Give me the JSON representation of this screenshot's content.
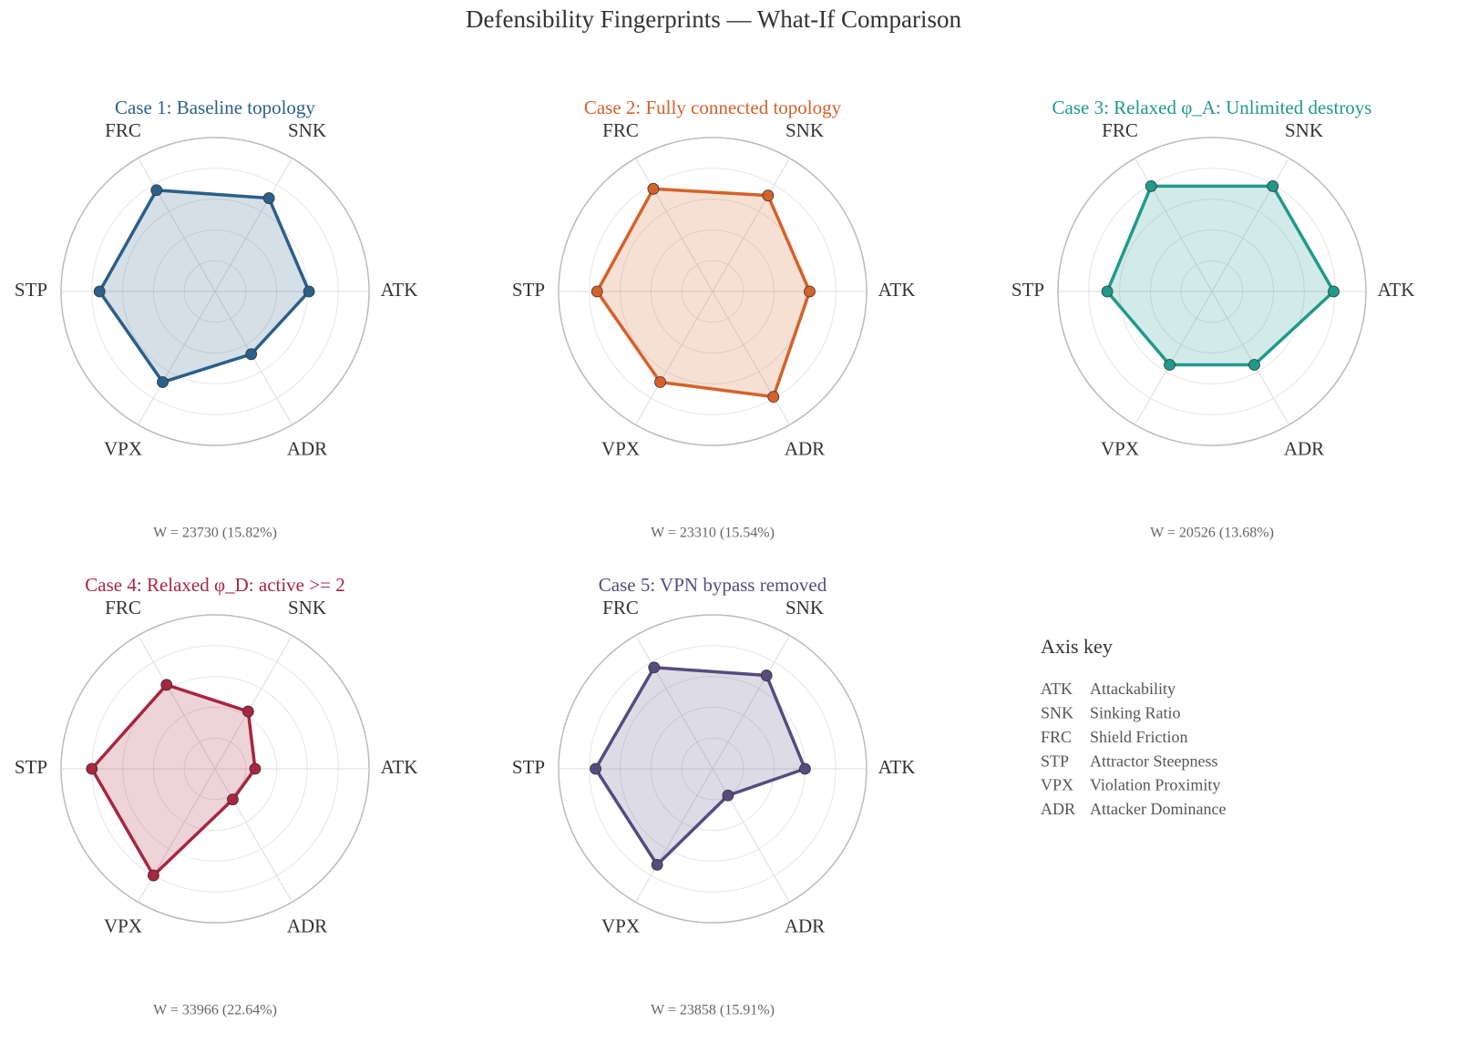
{
  "title": "Defensibility Fingerprints — What-If Comparison",
  "chart_data": [
    {
      "type": "radar",
      "title": "Case 1: Baseline topology",
      "color": "#2c5f8a",
      "categories": [
        "ATK",
        "SNK",
        "FRC",
        "STP",
        "VPX",
        "ADR"
      ],
      "values": [
        0.61,
        0.7,
        0.76,
        0.75,
        0.68,
        0.47
      ],
      "ylim": [
        0,
        1
      ],
      "yticks": [
        0.2,
        0.4,
        0.6,
        0.8
      ],
      "annotation": "W = 23730 (15.82%)"
    },
    {
      "type": "radar",
      "title": "Case 2: Fully connected topology",
      "color": "#d4622a",
      "categories": [
        "ATK",
        "SNK",
        "FRC",
        "STP",
        "VPX",
        "ADR"
      ],
      "values": [
        0.63,
        0.72,
        0.77,
        0.75,
        0.68,
        0.79
      ],
      "ylim": [
        0,
        1
      ],
      "yticks": [
        0.2,
        0.4,
        0.6,
        0.8
      ],
      "annotation": "W = 23310 (15.54%)"
    },
    {
      "type": "radar",
      "title": "Case 3: Relaxed φ_A: Unlimited destroys",
      "color": "#1f9a8a",
      "categories": [
        "ATK",
        "SNK",
        "FRC",
        "STP",
        "VPX",
        "ADR"
      ],
      "values": [
        0.79,
        0.79,
        0.79,
        0.68,
        0.55,
        0.55
      ],
      "ylim": [
        0,
        1
      ],
      "yticks": [
        0.2,
        0.4,
        0.6,
        0.8
      ],
      "annotation": "W = 20526 (13.68%)"
    },
    {
      "type": "radar",
      "title": "Case 4: Relaxed φ_D: active >= 2",
      "color": "#a8263f",
      "categories": [
        "ATK",
        "SNK",
        "FRC",
        "STP",
        "VPX",
        "ADR"
      ],
      "values": [
        0.26,
        0.43,
        0.63,
        0.8,
        0.8,
        0.23
      ],
      "ylim": [
        0,
        1
      ],
      "yticks": [
        0.2,
        0.4,
        0.6,
        0.8
      ],
      "annotation": "W = 33966 (22.64%)"
    },
    {
      "type": "radar",
      "title": "Case 5: VPN bypass removed",
      "color": "#574b7e",
      "categories": [
        "ATK",
        "SNK",
        "FRC",
        "STP",
        "VPX",
        "ADR"
      ],
      "values": [
        0.6,
        0.7,
        0.76,
        0.76,
        0.72,
        0.2
      ],
      "ylim": [
        0,
        1
      ],
      "yticks": [
        0.2,
        0.4,
        0.6,
        0.8
      ],
      "annotation": "W = 23858 (15.91%)"
    }
  ],
  "axis_key": {
    "title": "Axis key",
    "items": [
      {
        "code": "ATK",
        "name": "Attackability"
      },
      {
        "code": "SNK",
        "name": "Sinking Ratio"
      },
      {
        "code": "FRC",
        "name": "Shield Friction"
      },
      {
        "code": "STP",
        "name": "Attractor Steepness"
      },
      {
        "code": "VPX",
        "name": "Violation Proximity"
      },
      {
        "code": "ADR",
        "name": "Attacker Dominance"
      }
    ]
  }
}
